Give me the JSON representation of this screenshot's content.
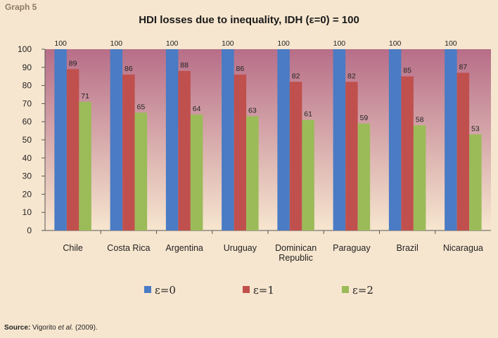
{
  "header": {
    "graph_label": "Graph 5",
    "source_label": "Source:",
    "source_author": "Vigorito",
    "source_etal": "et al.",
    "source_year": "(2009)."
  },
  "colors": {
    "series": [
      "#4a7bc4",
      "#c0504d",
      "#9bbb59"
    ],
    "plot_top": "#b76e88",
    "plot_bottom": "#f7e6cf"
  },
  "chart_data": {
    "type": "bar",
    "title": "HDI losses due to inequality, IDH (ε=0) = 100",
    "categories": [
      "Chile",
      "Costa Rica",
      "Argentina",
      "Uruguay",
      "Dominican Republic",
      "Paraguay",
      "Brazil",
      "Nicaragua"
    ],
    "category_lines": [
      [
        "Chile"
      ],
      [
        "Costa Rica"
      ],
      [
        "Argentina"
      ],
      [
        "Uruguay"
      ],
      [
        "Dominican",
        "Republic"
      ],
      [
        "Paraguay"
      ],
      [
        "Brazil"
      ],
      [
        "Nicaragua"
      ]
    ],
    "series": [
      {
        "name": "ε=0",
        "values": [
          100,
          100,
          100,
          100,
          100,
          100,
          100,
          100
        ]
      },
      {
        "name": "ε=1",
        "values": [
          89,
          86,
          88,
          86,
          82,
          82,
          85,
          87
        ]
      },
      {
        "name": "ε=2",
        "values": [
          71,
          65,
          64,
          63,
          61,
          59,
          58,
          53
        ]
      }
    ],
    "ylim": [
      0,
      100
    ],
    "yticks": [
      0,
      10,
      20,
      30,
      40,
      50,
      60,
      70,
      80,
      90,
      100
    ],
    "xlabel": "",
    "ylabel": "",
    "grid": false,
    "legend": "bottom"
  }
}
